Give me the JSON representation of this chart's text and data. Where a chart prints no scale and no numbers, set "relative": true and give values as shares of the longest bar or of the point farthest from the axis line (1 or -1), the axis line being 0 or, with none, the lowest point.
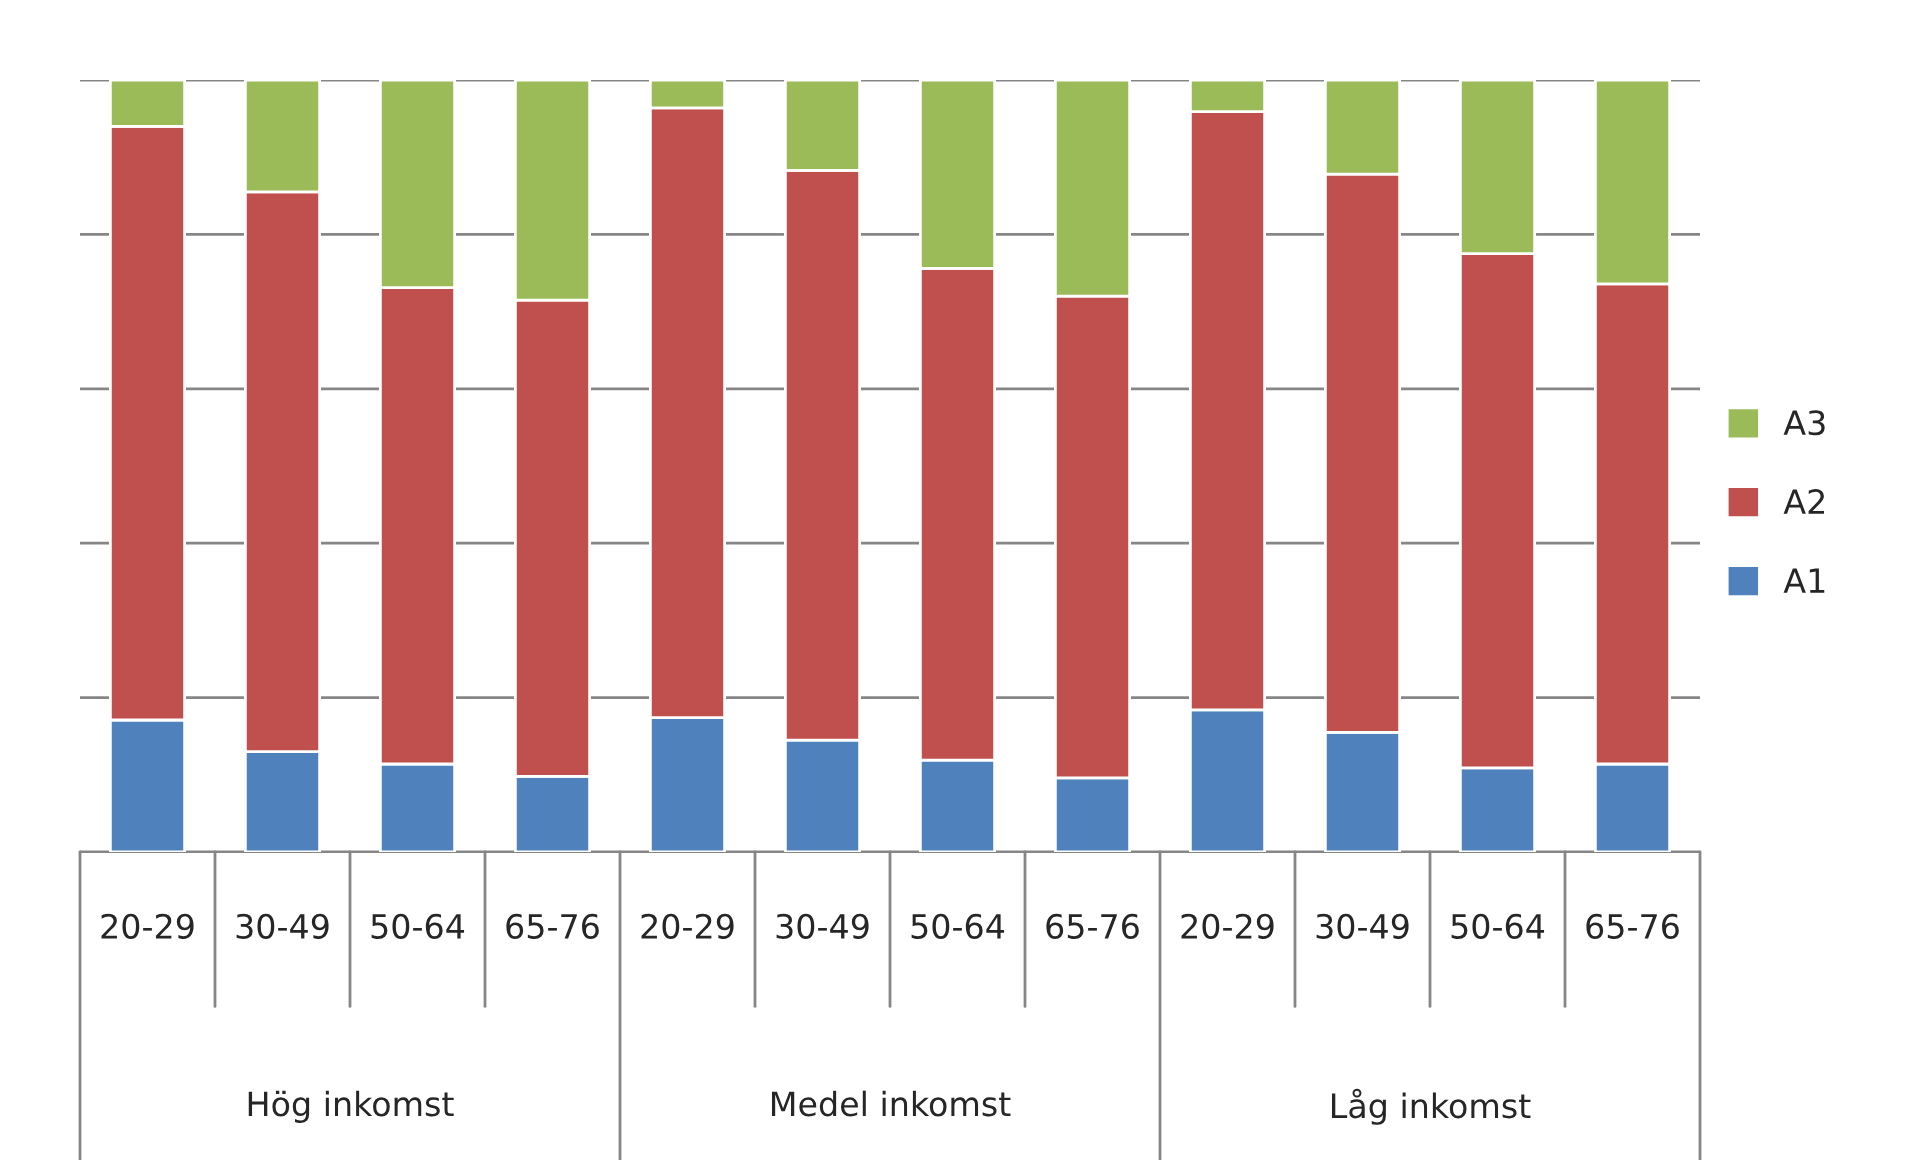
{
  "chart_data": {
    "type": "bar",
    "stacked": true,
    "relative": true,
    "grid": "y",
    "legend": "right",
    "categories": [
      "20-29",
      "30-49",
      "50-64",
      "65-76",
      "20-29",
      "30-49",
      "50-64",
      "65-76",
      "20-29",
      "30-49",
      "50-64",
      "65-76"
    ],
    "series": [
      {
        "name": "A1",
        "color": "#4f81bd",
        "values": [
          0.171,
          0.13,
          0.114,
          0.098,
          0.174,
          0.145,
          0.119,
          0.096,
          0.184,
          0.155,
          0.109,
          0.114
        ]
      },
      {
        "name": "A2",
        "color": "#c0504d",
        "values": [
          0.769,
          0.725,
          0.617,
          0.617,
          0.79,
          0.738,
          0.637,
          0.624,
          0.775,
          0.723,
          0.666,
          0.622
        ]
      },
      {
        "name": "A3",
        "color": "#9bbb59",
        "values": [
          0.06,
          0.145,
          0.269,
          0.285,
          0.036,
          0.117,
          0.244,
          0.28,
          0.041,
          0.122,
          0.225,
          0.264
        ]
      }
    ],
    "annotations": [
      "Hög inkomst",
      "Medel inkomst",
      "Låg inkomst"
    ]
  }
}
